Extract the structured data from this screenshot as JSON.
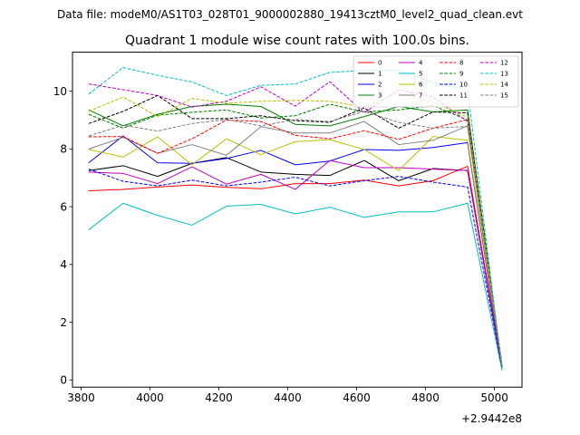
{
  "figure": {
    "suptitle": "Data file: modeM0/AS1T03_028T01_9000002880_19413cztM0_level2_quad_clean.evt"
  },
  "chart_data": {
    "type": "line",
    "title": "Quadrant 1 module wise count rates with 100.0s bins.",
    "xlabel": "",
    "ylabel": "",
    "offset_text": "+2.9442e8",
    "xlim": [
      3775,
      5080
    ],
    "ylim": [
      -0.25,
      11.35
    ],
    "xticks": [
      3800,
      4000,
      4200,
      4400,
      4600,
      4800,
      5000
    ],
    "yticks": [
      0,
      2,
      4,
      6,
      8,
      10
    ],
    "x": [
      3822,
      3922,
      4022,
      4122,
      4222,
      4322,
      4422,
      4522,
      4622,
      4722,
      4822,
      4922,
      5022
    ],
    "legend_location": "upper-right",
    "series": [
      {
        "name": "0",
        "color": "#ff0000",
        "dash": "solid",
        "values": [
          6.55,
          6.6,
          6.68,
          6.75,
          6.67,
          6.62,
          6.8,
          6.8,
          6.92,
          6.72,
          6.9,
          7.4,
          0.45
        ]
      },
      {
        "name": "1",
        "color": "#000000",
        "dash": "solid",
        "values": [
          7.25,
          7.42,
          7.05,
          7.5,
          7.7,
          7.2,
          7.12,
          7.08,
          7.6,
          6.9,
          7.32,
          7.25,
          0.4
        ]
      },
      {
        "name": "2",
        "color": "#0000ff",
        "dash": "solid",
        "values": [
          7.52,
          8.45,
          7.52,
          7.5,
          7.67,
          7.95,
          7.45,
          7.58,
          7.98,
          7.95,
          8.05,
          8.22,
          0.4
        ]
      },
      {
        "name": "3",
        "color": "#008000",
        "dash": "solid",
        "values": [
          9.35,
          8.8,
          9.2,
          9.47,
          9.55,
          9.47,
          8.85,
          8.8,
          9.12,
          9.47,
          9.28,
          9.35,
          0.5
        ]
      },
      {
        "name": "4",
        "color": "#c000c0",
        "dash": "solid",
        "values": [
          7.2,
          7.15,
          6.8,
          7.38,
          6.78,
          7.12,
          6.6,
          7.6,
          7.35,
          7.35,
          7.3,
          7.25,
          0.4
        ]
      },
      {
        "name": "5",
        "color": "#00bfbf",
        "dash": "solid",
        "values": [
          5.2,
          6.12,
          5.7,
          5.36,
          6.02,
          6.08,
          5.75,
          5.98,
          5.63,
          5.82,
          5.82,
          6.12,
          0.33
        ]
      },
      {
        "name": "6",
        "color": "#bfbf00",
        "dash": "solid",
        "values": [
          7.98,
          7.72,
          8.42,
          7.45,
          8.35,
          7.8,
          8.25,
          8.32,
          7.98,
          7.25,
          8.43,
          8.3,
          0.5
        ]
      },
      {
        "name": "7",
        "color": "#808080",
        "dash": "solid",
        "values": [
          8.0,
          8.4,
          7.85,
          8.15,
          7.78,
          8.77,
          8.55,
          8.55,
          8.95,
          8.15,
          8.3,
          8.8,
          0.45
        ]
      },
      {
        "name": "8",
        "color": "#ff0000",
        "dash": "dashed",
        "values": [
          8.42,
          8.43,
          7.85,
          8.35,
          9.0,
          8.95,
          8.47,
          8.35,
          8.63,
          8.33,
          8.72,
          9.02,
          0.45
        ]
      },
      {
        "name": "9",
        "color": "#008000",
        "dash": "dashed",
        "values": [
          9.2,
          8.72,
          9.17,
          9.27,
          9.35,
          9.07,
          9.15,
          9.55,
          9.28,
          9.35,
          9.5,
          9.0,
          0.5
        ]
      },
      {
        "name": "10",
        "color": "#0000ff",
        "dash": "dashed",
        "values": [
          7.3,
          6.88,
          6.72,
          6.92,
          6.72,
          6.85,
          7.02,
          6.72,
          6.9,
          7.05,
          6.85,
          6.68,
          0.42
        ]
      },
      {
        "name": "11",
        "color": "#000000",
        "dash": "dashed",
        "values": [
          8.88,
          9.3,
          9.85,
          9.05,
          9.05,
          9.15,
          8.98,
          8.92,
          9.42,
          8.72,
          9.28,
          9.25,
          0.48
        ]
      },
      {
        "name": "12",
        "color": "#c000c0",
        "dash": "dashed",
        "values": [
          10.25,
          10.05,
          9.85,
          9.45,
          9.65,
          10.15,
          9.48,
          10.33,
          9.25,
          10.05,
          9.8,
          8.95,
          0.45
        ]
      },
      {
        "name": "13",
        "color": "#00bfbf",
        "dash": "dashed",
        "values": [
          9.9,
          10.82,
          10.55,
          10.32,
          9.85,
          10.2,
          10.25,
          10.65,
          10.72,
          10.72,
          10.3,
          10.05,
          0.4
        ]
      },
      {
        "name": "14",
        "color": "#bfbf00",
        "dash": "dashed",
        "values": [
          9.3,
          9.8,
          9.12,
          9.75,
          9.58,
          9.65,
          9.68,
          9.65,
          9.45,
          9.95,
          9.62,
          9.1,
          0.5
        ]
      },
      {
        "name": "15",
        "color": "#808080",
        "dash": "dashed",
        "values": [
          8.45,
          8.82,
          8.62,
          8.88,
          9.02,
          8.8,
          9.02,
          8.95,
          9.3,
          8.92,
          8.72,
          8.78,
          0.45
        ]
      }
    ]
  }
}
